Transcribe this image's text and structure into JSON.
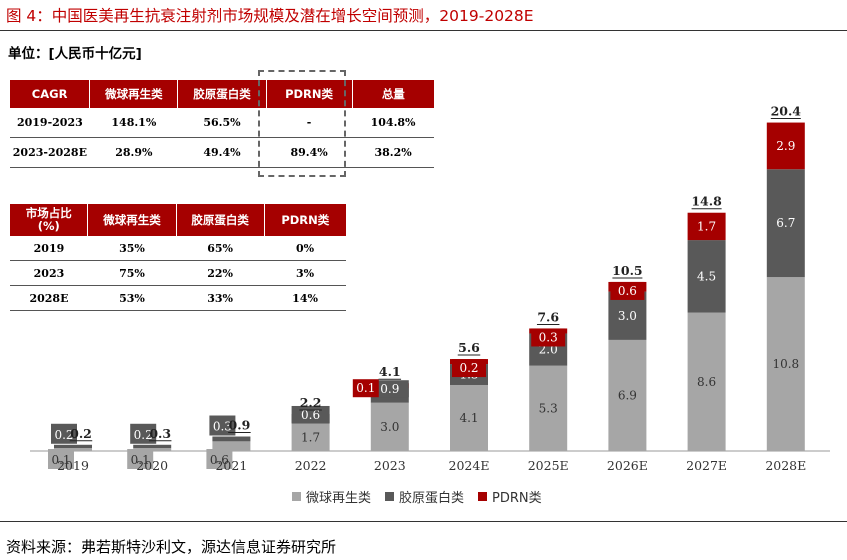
{
  "title": "图 4：中国医美再生抗衰注射剂市场规模及潜在增长空间预测，2019-2028E",
  "unit_label": "单位：[人民币十亿元]",
  "source": "资料来源：弗若斯特沙利文，源达信息证券研究所",
  "colors": {
    "regen": "#a6a6a6",
    "collagen": "#595959",
    "pdrn": "#a50000",
    "header_bg": "#a50000"
  },
  "cagr_table": {
    "headers": [
      "CAGR",
      "微球再生类",
      "胶原蛋白类",
      "PDRN类",
      "总量"
    ],
    "rows": [
      [
        "2019-2023",
        "148.1%",
        "56.5%",
        "-",
        "104.8%"
      ],
      [
        "2023-2028E",
        "28.9%",
        "49.4%",
        "89.4%",
        "38.2%"
      ]
    ]
  },
  "share_table": {
    "headers": [
      "市场占比\n(%)",
      "微球再生类",
      "胶原蛋白类",
      "PDRN类"
    ],
    "rows": [
      [
        "2019",
        "35%",
        "65%",
        "0%"
      ],
      [
        "2023",
        "75%",
        "22%",
        "3%"
      ],
      [
        "2028E",
        "53%",
        "33%",
        "14%"
      ]
    ]
  },
  "chart_data": {
    "type": "bar",
    "stacked": true,
    "categories": [
      "2019",
      "2020",
      "2021",
      "2022",
      "2023",
      "2024E",
      "2025E",
      "2026E",
      "2027E",
      "2028E"
    ],
    "series": [
      {
        "name": "微球再生类",
        "color": "#a6a6a6",
        "values": [
          0.1,
          0.1,
          0.6,
          1.7,
          3.0,
          4.1,
          5.3,
          6.9,
          8.6,
          10.8
        ],
        "labels": [
          "0.1",
          "0.1",
          "0.6",
          "1.7",
          "3.0",
          "4.1",
          "5.3",
          "6.9",
          "8.6",
          "10.8"
        ]
      },
      {
        "name": "胶原蛋白类",
        "color": "#595959",
        "values": [
          0.2,
          0.2,
          0.3,
          0.6,
          0.9,
          1.3,
          2.0,
          3.0,
          4.5,
          6.7
        ],
        "labels": [
          "0.2",
          "0.2",
          "0.3",
          "0.6",
          "0.9",
          "1.3",
          "2.0",
          "3.0",
          "4.5",
          "6.7"
        ]
      },
      {
        "name": "PDRN类",
        "color": "#a50000",
        "values": [
          0,
          0,
          0,
          0,
          0.1,
          0.2,
          0.3,
          0.6,
          1.7,
          2.9
        ],
        "labels": [
          "",
          "",
          "",
          "",
          "0.1",
          "0.2",
          "0.3",
          "0.6",
          "1.7",
          "2.9"
        ]
      }
    ],
    "totals": [
      "0.2",
      "0.3",
      "0.9",
      "2.2",
      "4.1",
      "5.6",
      "7.6",
      "10.5",
      "14.8",
      "20.4"
    ],
    "legend": [
      "微球再生类",
      "胶原蛋白类",
      "PDRN类"
    ],
    "legend_position": "bottom",
    "ylim": [
      0,
      21
    ],
    "grid": false
  }
}
